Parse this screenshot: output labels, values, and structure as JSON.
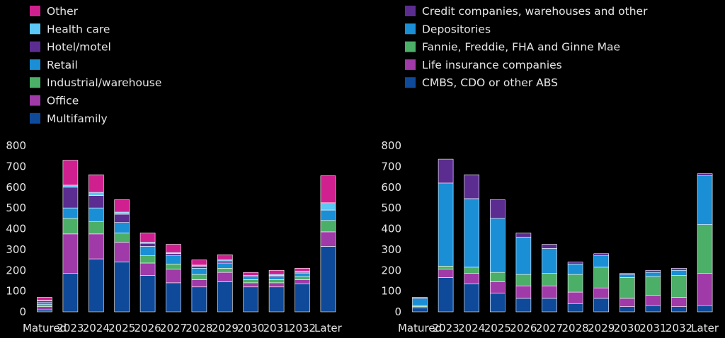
{
  "colors": {
    "Other": "#d02090",
    "Health care": "#5bc8f5",
    "Hotel/motel": "#5b2d91",
    "Retail": "#1a8fd6",
    "Industrial/warehouse": "#4caf68",
    "Office": "#a03aa8",
    "Multifamily": "#0f4a9a",
    "Credit companies, warehouses and other": "#5b2d91",
    "Depositories": "#1a8fd6",
    "Fannie, Freddie, FHA and Ginne Mae": "#4caf68",
    "Life insurance companies": "#a03aa8",
    "CMBS, CDO or other ABS": "#0f4a9a"
  },
  "chart_data": [
    {
      "type": "bar",
      "stacked": true,
      "categories": [
        "Matured",
        "2023",
        "2024",
        "2025",
        "2026",
        "2027",
        "2028",
        "2029",
        "2030",
        "2031",
        "2032",
        "Later"
      ],
      "ylim": [
        0,
        800
      ],
      "yticks": [
        0,
        100,
        200,
        300,
        400,
        500,
        600,
        700,
        800
      ],
      "legend_position": "top-left",
      "legend_order": [
        "Other",
        "Health care",
        "Hotel/motel",
        "Retail",
        "Industrial/warehouse",
        "Office",
        "Multifamily"
      ],
      "series": [
        {
          "name": "Multifamily",
          "values": [
            10,
            185,
            255,
            240,
            175,
            140,
            120,
            145,
            120,
            120,
            135,
            315
          ]
        },
        {
          "name": "Office",
          "values": [
            15,
            190,
            120,
            95,
            60,
            65,
            35,
            45,
            20,
            20,
            20,
            70
          ]
        },
        {
          "name": "Industrial/warehouse",
          "values": [
            10,
            75,
            60,
            45,
            35,
            25,
            25,
            20,
            15,
            15,
            15,
            55
          ]
        },
        {
          "name": "Retail",
          "values": [
            10,
            50,
            65,
            50,
            45,
            40,
            30,
            25,
            15,
            15,
            15,
            50
          ]
        },
        {
          "name": "Hotel/motel",
          "values": [
            8,
            100,
            60,
            40,
            15,
            10,
            10,
            10,
            5,
            5,
            5,
            0
          ]
        },
        {
          "name": "Health care",
          "values": [
            2,
            10,
            15,
            10,
            5,
            5,
            5,
            5,
            0,
            5,
            5,
            35
          ]
        },
        {
          "name": "Other",
          "values": [
            15,
            120,
            85,
            60,
            45,
            40,
            25,
            25,
            15,
            20,
            15,
            130
          ]
        }
      ]
    },
    {
      "type": "bar",
      "stacked": true,
      "categories": [
        "Matured",
        "2023",
        "2024",
        "2025",
        "2026",
        "2027",
        "2028",
        "2029",
        "2030",
        "2031",
        "2032",
        "Later"
      ],
      "ylim": [
        0,
        800
      ],
      "yticks": [
        0,
        100,
        200,
        300,
        400,
        500,
        600,
        700,
        800
      ],
      "legend_position": "top-left",
      "legend_order": [
        "Credit companies, warehouses and other",
        "Depositories",
        "Fannie, Freddie, FHA and Ginne Mae",
        "Life insurance companies",
        "CMBS, CDO or other ABS"
      ],
      "series": [
        {
          "name": "CMBS, CDO or other ABS",
          "values": [
            20,
            165,
            135,
            90,
            65,
            65,
            40,
            65,
            25,
            30,
            25,
            30
          ]
        },
        {
          "name": "Life insurance companies",
          "values": [
            5,
            40,
            50,
            55,
            60,
            60,
            55,
            50,
            40,
            50,
            45,
            155
          ]
        },
        {
          "name": "Fannie, Freddie, FHA and Ginne Mae",
          "values": [
            5,
            15,
            30,
            45,
            55,
            60,
            85,
            100,
            100,
            90,
            105,
            235
          ]
        },
        {
          "name": "Depositories",
          "values": [
            35,
            400,
            330,
            260,
            180,
            120,
            50,
            55,
            15,
            20,
            25,
            235
          ]
        },
        {
          "name": "Credit companies, warehouses and other",
          "values": [
            5,
            115,
            115,
            90,
            20,
            20,
            10,
            10,
            5,
            10,
            10,
            10
          ]
        }
      ]
    }
  ]
}
